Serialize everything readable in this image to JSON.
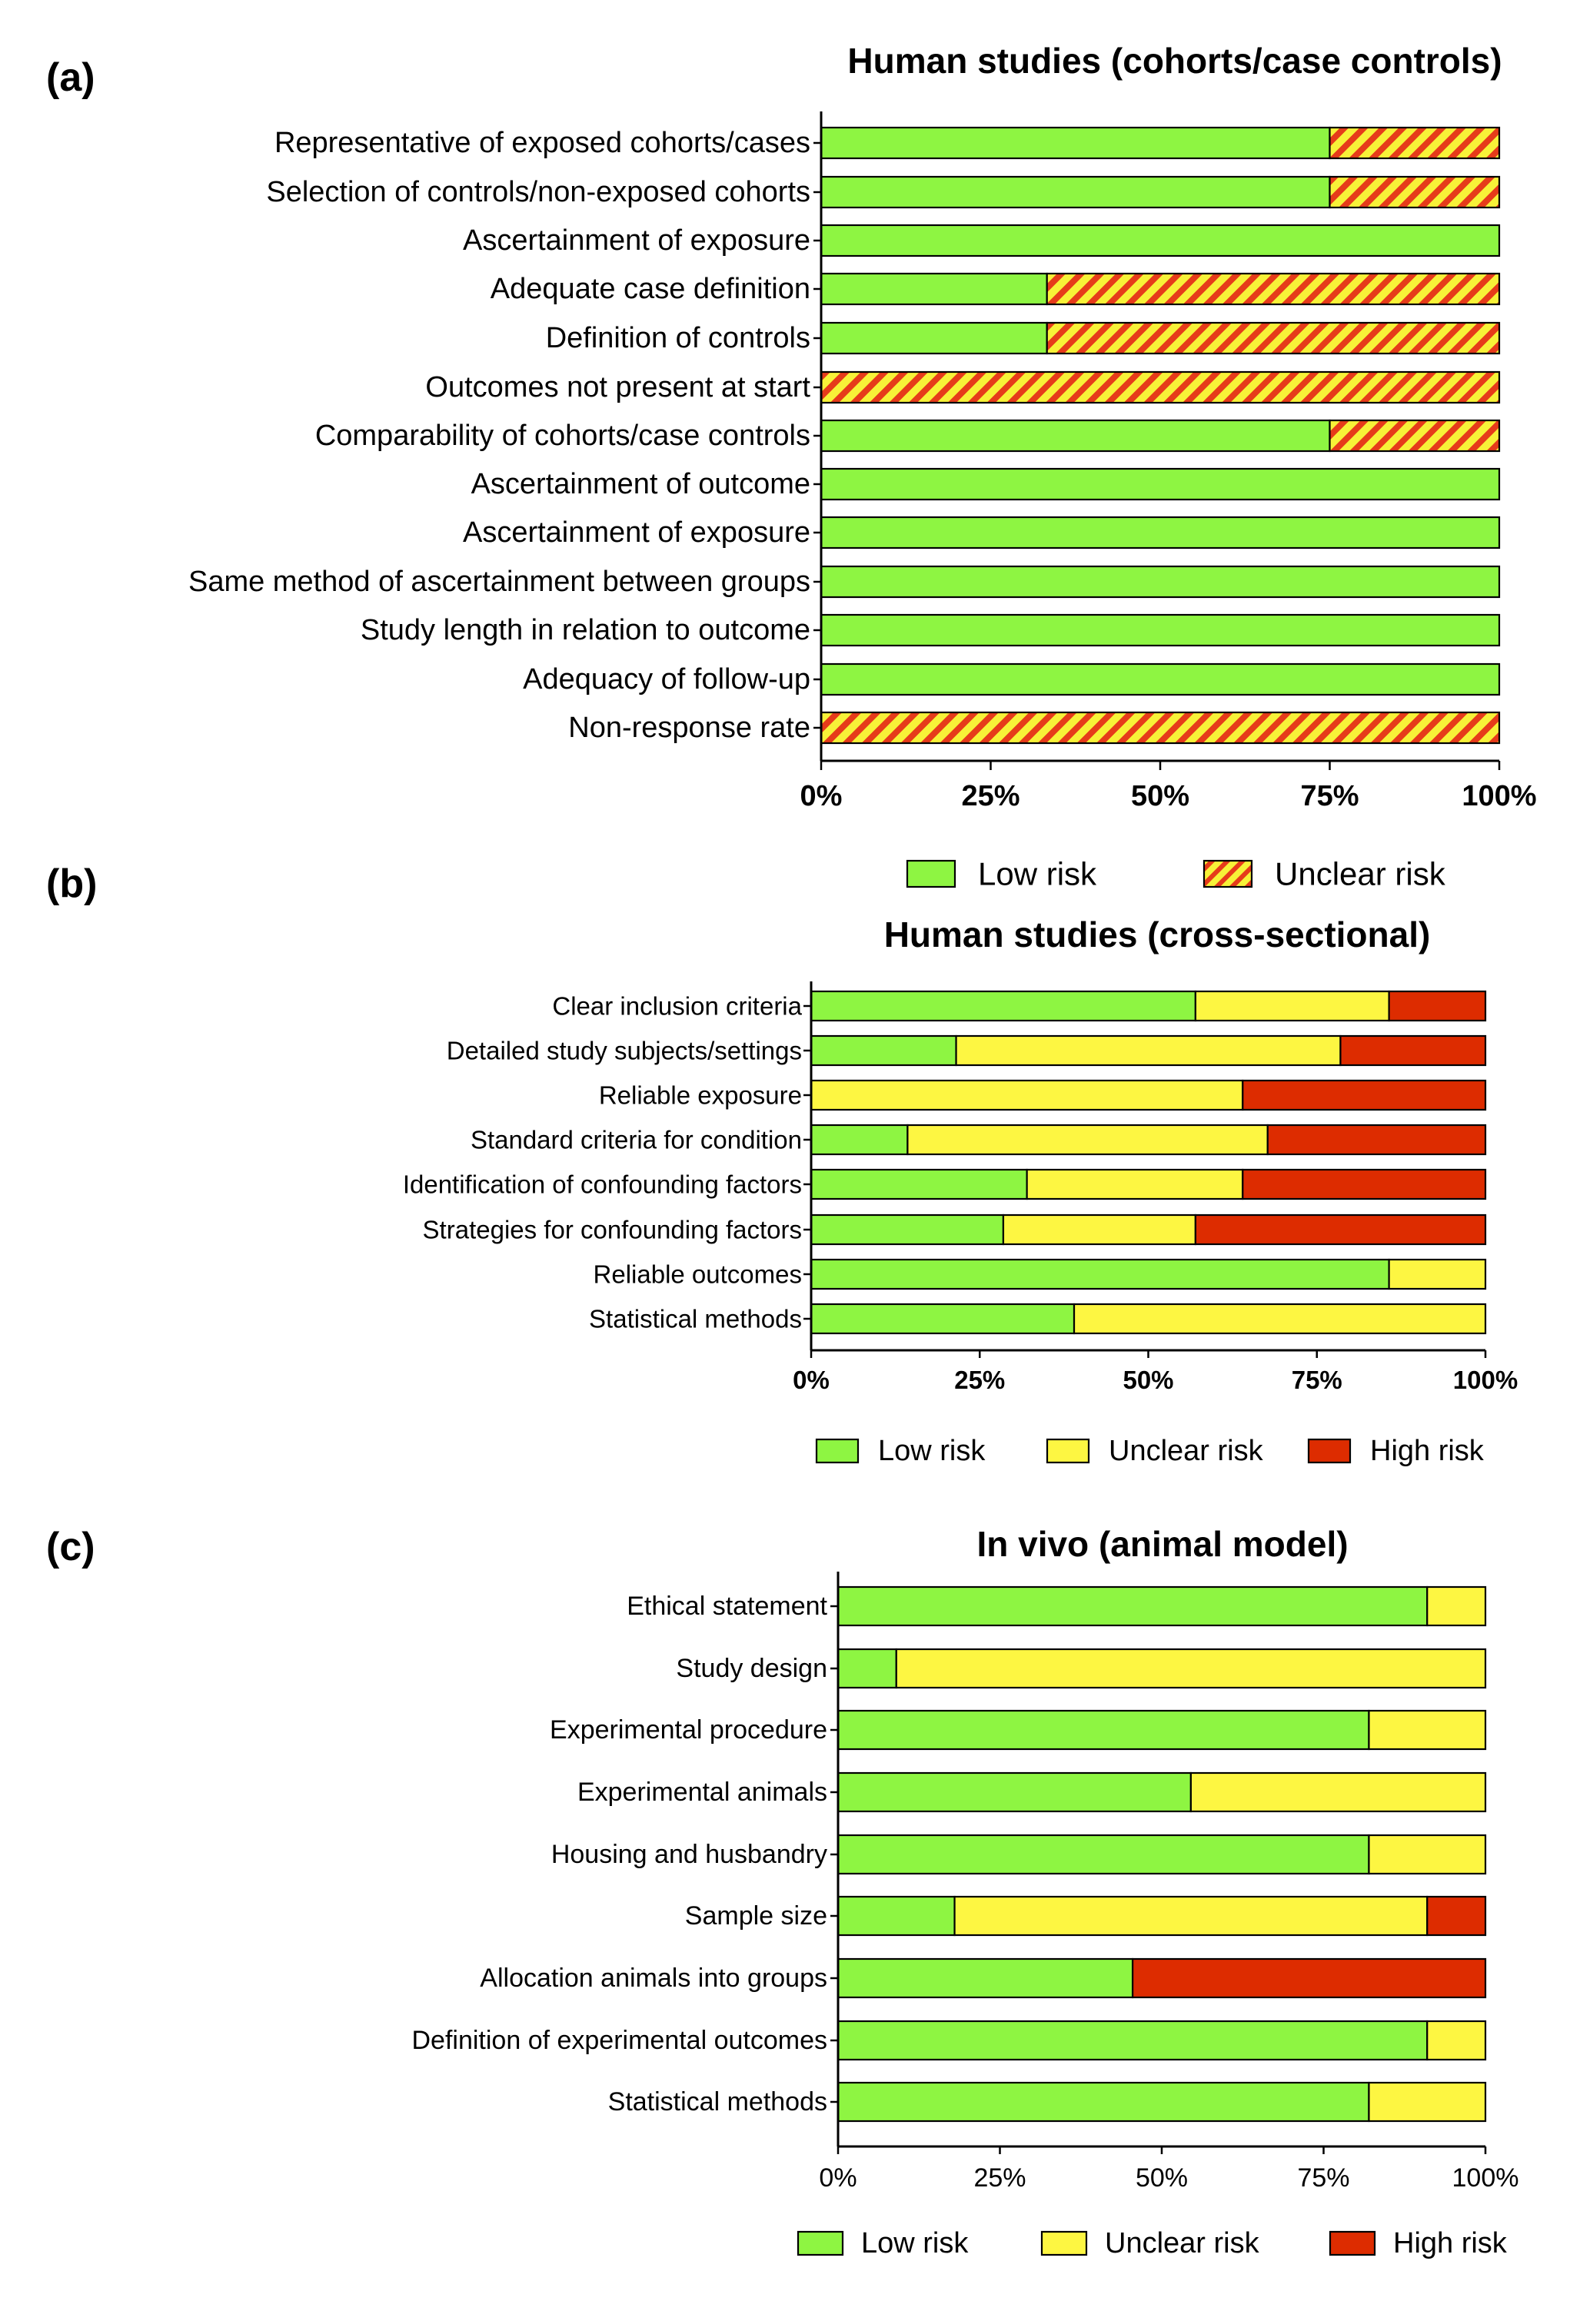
{
  "colors": {
    "low": "#8ef542",
    "unclear": "#fdf642",
    "high": "#dd2c00",
    "hatch_bg": "#f7f238",
    "hatch_stripe": "#e63b1a",
    "outline": "#000000"
  },
  "chart_data": [
    {
      "panel_label": "(a)",
      "type": "bar",
      "orientation": "horizontal",
      "stacked": true,
      "title": "Human studies (cohorts/case controls)",
      "categories": [
        "Representative of exposed cohorts/cases",
        "Selection of controls/non-exposed cohorts",
        "Ascertainment of exposure",
        "Adequate case definition",
        "Definition of controls",
        "Outcomes not present at start",
        "Comparability of cohorts/case controls",
        "Ascertainment of outcome",
        "Ascertainment of exposure",
        "Same method of ascertainment between groups",
        "Study length in relation to outcome",
        "Adequacy of follow-up",
        "Non-response rate"
      ],
      "series": [
        {
          "name": "Low risk",
          "key": "low",
          "values": [
            75,
            75,
            100,
            33.3,
            33.3,
            0,
            75,
            100,
            100,
            100,
            100,
            100,
            0
          ]
        },
        {
          "name": "Unclear risk",
          "key": "hatch",
          "values": [
            25,
            25,
            0,
            66.7,
            66.7,
            100,
            25,
            0,
            0,
            0,
            0,
            0,
            100
          ]
        }
      ],
      "xlim": [
        0,
        100
      ],
      "xticks": [
        "0%",
        "25%",
        "50%",
        "75%",
        "100%"
      ],
      "bold_ticks": true,
      "legend": [
        "Low risk",
        "Unclear risk"
      ],
      "legend_position": "bottom"
    },
    {
      "panel_label": "(b)",
      "type": "bar",
      "orientation": "horizontal",
      "stacked": true,
      "title": "Human studies (cross-sectional)",
      "categories": [
        "Clear inclusion criteria",
        "Detailed study subjects/settings",
        "Reliable exposure",
        "Standard criteria for condition",
        "Identification of confounding factors",
        "Strategies for confounding factors",
        "Reliable outcomes",
        "Statistical methods"
      ],
      "series": [
        {
          "name": "Low risk",
          "key": "low",
          "values": [
            57,
            21.5,
            0,
            14.3,
            32,
            28.5,
            85.7,
            39
          ]
        },
        {
          "name": "Unclear risk",
          "key": "unclear",
          "values": [
            28.7,
            57,
            64,
            53.4,
            32,
            28.5,
            14.3,
            61
          ]
        },
        {
          "name": "High risk",
          "key": "high",
          "values": [
            14.3,
            21.5,
            36,
            32.3,
            36,
            43,
            0,
            0
          ]
        }
      ],
      "xlim": [
        0,
        100
      ],
      "xticks": [
        "0%",
        "25%",
        "50%",
        "75%",
        "100%"
      ],
      "bold_ticks": true,
      "legend": [
        "Low risk",
        "Unclear risk",
        "High risk"
      ],
      "legend_position": "bottom"
    },
    {
      "panel_label": "(c)",
      "type": "bar",
      "orientation": "horizontal",
      "stacked": true,
      "title": "In vivo (animal model)",
      "categories": [
        "Ethical statement",
        "Study design",
        "Experimental procedure",
        "Experimental animals",
        "Housing and husbandry",
        "Sample size",
        "Allocation animals into groups",
        "Definition of experimental outcomes",
        "Statistical methods"
      ],
      "series": [
        {
          "name": "Low risk",
          "key": "low",
          "values": [
            91,
            9,
            82,
            54.5,
            82,
            18,
            45.5,
            91,
            82
          ]
        },
        {
          "name": "Unclear risk",
          "key": "unclear",
          "values": [
            9,
            91,
            18,
            45.5,
            18,
            73,
            0,
            9,
            18
          ]
        },
        {
          "name": "High risk",
          "key": "high",
          "values": [
            0,
            0,
            0,
            0,
            0,
            9,
            54.5,
            0,
            0
          ]
        }
      ],
      "xlim": [
        0,
        100
      ],
      "xticks": [
        "0%",
        "25%",
        "50%",
        "75%",
        "100%"
      ],
      "bold_ticks": false,
      "legend": [
        "Low risk",
        "Unclear risk",
        "High risk"
      ],
      "legend_position": "bottom"
    }
  ]
}
